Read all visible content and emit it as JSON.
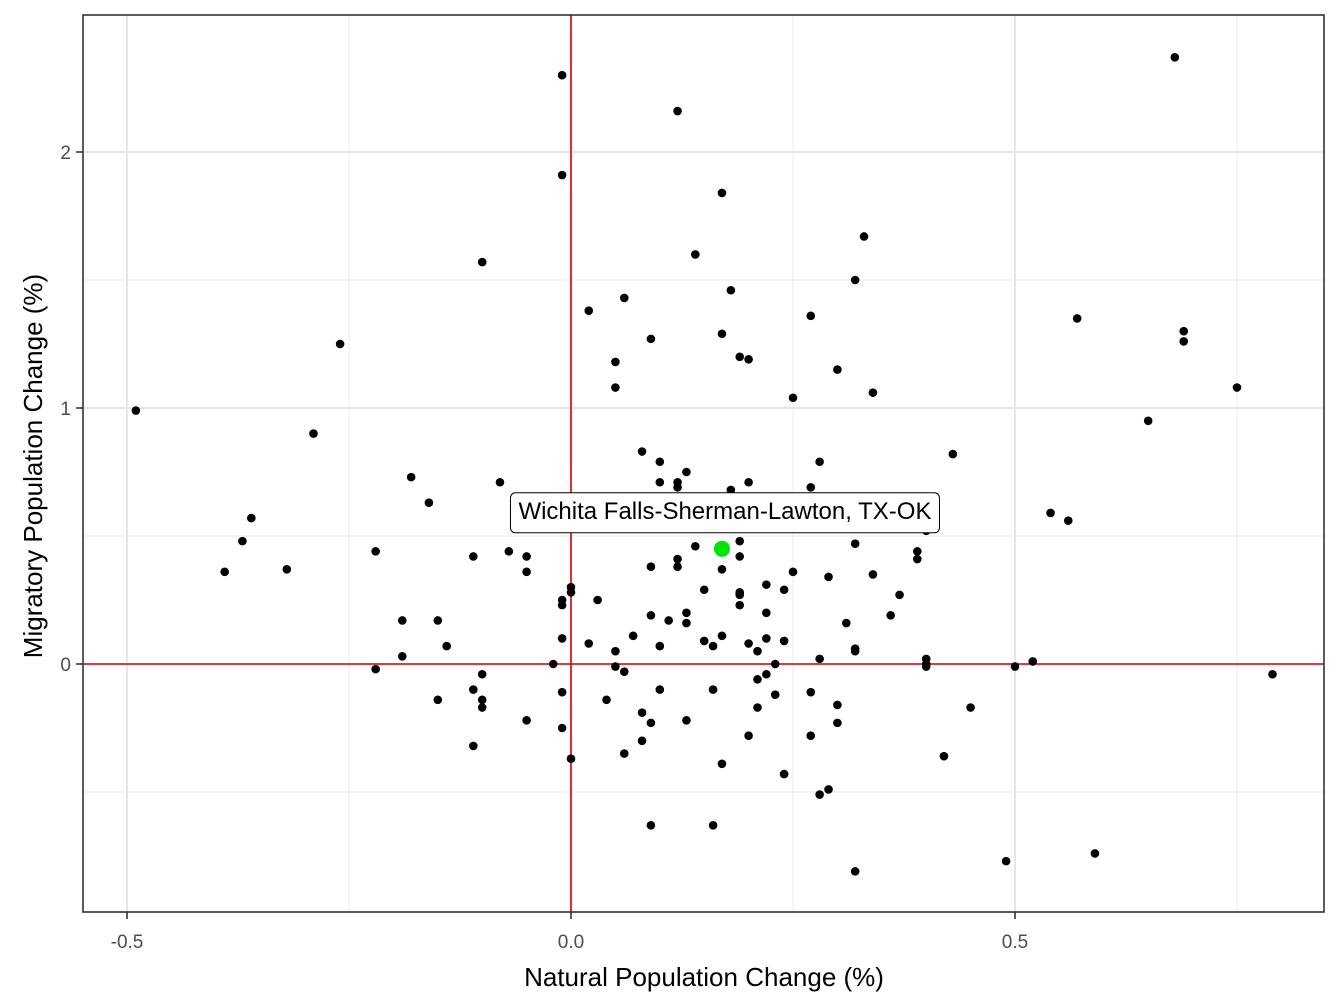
{
  "chart_data": {
    "type": "scatter",
    "xlabel": "Natural Population Change (%)",
    "ylabel": "Migratory Population Change (%)",
    "xlim": [
      -0.5,
      0.85
    ],
    "ylim": [
      -0.95,
      2.5
    ],
    "x_ticks": [
      -0.5,
      0.0,
      0.5
    ],
    "x_tick_labels": [
      "-0.5",
      "0.0",
      "0.5"
    ],
    "y_ticks": [
      0,
      1,
      2
    ],
    "y_tick_labels": [
      "0",
      "1",
      "2"
    ],
    "grid": true,
    "reference_lines": {
      "x": 0,
      "y": 0,
      "color": "#e00000"
    },
    "point_color": "#000000",
    "highlight": {
      "label": "Wichita Falls-Sherman-Lawton, TX-OK",
      "x": 0.17,
      "y": 0.45,
      "color": "#00e600"
    },
    "points": [
      [
        -0.49,
        0.99
      ],
      [
        -0.39,
        0.36
      ],
      [
        -0.37,
        0.48
      ],
      [
        -0.36,
        0.57
      ],
      [
        -0.32,
        0.37
      ],
      [
        -0.29,
        0.9
      ],
      [
        -0.26,
        1.25
      ],
      [
        -0.22,
        0.44
      ],
      [
        -0.22,
        -0.02
      ],
      [
        -0.19,
        0.17
      ],
      [
        -0.19,
        0.03
      ],
      [
        -0.18,
        0.73
      ],
      [
        -0.16,
        0.63
      ],
      [
        -0.15,
        0.17
      ],
      [
        -0.15,
        -0.14
      ],
      [
        -0.14,
        0.07
      ],
      [
        -0.11,
        0.42
      ],
      [
        -0.11,
        -0.1
      ],
      [
        -0.11,
        -0.32
      ],
      [
        -0.1,
        1.57
      ],
      [
        -0.1,
        -0.04
      ],
      [
        -0.1,
        -0.14
      ],
      [
        -0.1,
        -0.17
      ],
      [
        -0.08,
        0.71
      ],
      [
        -0.07,
        0.44
      ],
      [
        -0.05,
        0.42
      ],
      [
        -0.05,
        0.36
      ],
      [
        -0.05,
        -0.22
      ],
      [
        -0.02,
        0.0
      ],
      [
        -0.01,
        2.3
      ],
      [
        -0.01,
        1.91
      ],
      [
        -0.01,
        0.25
      ],
      [
        -0.01,
        0.23
      ],
      [
        -0.01,
        0.1
      ],
      [
        -0.01,
        -0.11
      ],
      [
        -0.01,
        -0.25
      ],
      [
        0.0,
        0.3
      ],
      [
        0.0,
        0.28
      ],
      [
        0.0,
        -0.37
      ],
      [
        0.02,
        1.38
      ],
      [
        0.02,
        0.08
      ],
      [
        0.03,
        0.25
      ],
      [
        0.04,
        -0.14
      ],
      [
        0.05,
        1.18
      ],
      [
        0.05,
        1.08
      ],
      [
        0.05,
        0.05
      ],
      [
        0.05,
        -0.01
      ],
      [
        0.06,
        1.43
      ],
      [
        0.06,
        -0.03
      ],
      [
        0.06,
        -0.35
      ],
      [
        0.07,
        0.11
      ],
      [
        0.08,
        0.83
      ],
      [
        0.08,
        -0.19
      ],
      [
        0.08,
        -0.3
      ],
      [
        0.09,
        1.27
      ],
      [
        0.09,
        0.38
      ],
      [
        0.09,
        0.19
      ],
      [
        0.09,
        -0.23
      ],
      [
        0.09,
        -0.63
      ],
      [
        0.1,
        0.79
      ],
      [
        0.1,
        0.71
      ],
      [
        0.1,
        0.07
      ],
      [
        0.1,
        -0.1
      ],
      [
        0.11,
        0.17
      ],
      [
        0.12,
        2.16
      ],
      [
        0.12,
        0.71
      ],
      [
        0.12,
        0.69
      ],
      [
        0.12,
        0.41
      ],
      [
        0.12,
        0.38
      ],
      [
        0.13,
        0.75
      ],
      [
        0.13,
        0.2
      ],
      [
        0.13,
        0.16
      ],
      [
        0.13,
        -0.22
      ],
      [
        0.14,
        1.6
      ],
      [
        0.14,
        0.46
      ],
      [
        0.15,
        0.29
      ],
      [
        0.15,
        0.09
      ],
      [
        0.16,
        0.07
      ],
      [
        0.16,
        -0.1
      ],
      [
        0.16,
        -0.63
      ],
      [
        0.17,
        1.84
      ],
      [
        0.17,
        1.29
      ],
      [
        0.17,
        0.37
      ],
      [
        0.17,
        0.11
      ],
      [
        0.17,
        -0.39
      ],
      [
        0.18,
        1.46
      ],
      [
        0.18,
        0.68
      ],
      [
        0.19,
        1.2
      ],
      [
        0.19,
        0.48
      ],
      [
        0.19,
        0.42
      ],
      [
        0.19,
        0.28
      ],
      [
        0.19,
        0.27
      ],
      [
        0.19,
        0.23
      ],
      [
        0.2,
        1.19
      ],
      [
        0.2,
        0.71
      ],
      [
        0.2,
        0.08
      ],
      [
        0.2,
        -0.28
      ],
      [
        0.21,
        0.05
      ],
      [
        0.21,
        -0.06
      ],
      [
        0.21,
        -0.17
      ],
      [
        0.22,
        0.31
      ],
      [
        0.22,
        0.2
      ],
      [
        0.22,
        0.1
      ],
      [
        0.22,
        -0.04
      ],
      [
        0.23,
        0.0
      ],
      [
        0.23,
        -0.12
      ],
      [
        0.24,
        0.29
      ],
      [
        0.24,
        0.09
      ],
      [
        0.24,
        -0.43
      ],
      [
        0.25,
        1.04
      ],
      [
        0.25,
        0.36
      ],
      [
        0.27,
        1.36
      ],
      [
        0.27,
        0.69
      ],
      [
        0.27,
        -0.11
      ],
      [
        0.27,
        -0.28
      ],
      [
        0.28,
        0.79
      ],
      [
        0.28,
        0.02
      ],
      [
        0.28,
        -0.51
      ],
      [
        0.29,
        0.34
      ],
      [
        0.29,
        -0.49
      ],
      [
        0.3,
        1.15
      ],
      [
        0.3,
        -0.16
      ],
      [
        0.3,
        -0.23
      ],
      [
        0.31,
        0.16
      ],
      [
        0.32,
        1.5
      ],
      [
        0.32,
        0.47
      ],
      [
        0.32,
        0.06
      ],
      [
        0.32,
        0.05
      ],
      [
        0.32,
        -0.81
      ],
      [
        0.33,
        1.67
      ],
      [
        0.34,
        1.06
      ],
      [
        0.34,
        0.35
      ],
      [
        0.36,
        0.19
      ],
      [
        0.37,
        0.27
      ],
      [
        0.39,
        0.44
      ],
      [
        0.39,
        0.41
      ],
      [
        0.4,
        0.52
      ],
      [
        0.4,
        0.02
      ],
      [
        0.4,
        0.0
      ],
      [
        0.4,
        -0.01
      ],
      [
        0.42,
        -0.36
      ],
      [
        0.43,
        0.82
      ],
      [
        0.45,
        -0.17
      ],
      [
        0.49,
        -0.77
      ],
      [
        0.5,
        -0.01
      ],
      [
        0.52,
        0.01
      ],
      [
        0.54,
        0.59
      ],
      [
        0.56,
        0.56
      ],
      [
        0.57,
        1.35
      ],
      [
        0.59,
        -0.74
      ],
      [
        0.65,
        0.95
      ],
      [
        0.68,
        2.37
      ],
      [
        0.69,
        1.3
      ],
      [
        0.69,
        1.26
      ],
      [
        0.75,
        1.08
      ],
      [
        0.79,
        -0.04
      ]
    ]
  }
}
